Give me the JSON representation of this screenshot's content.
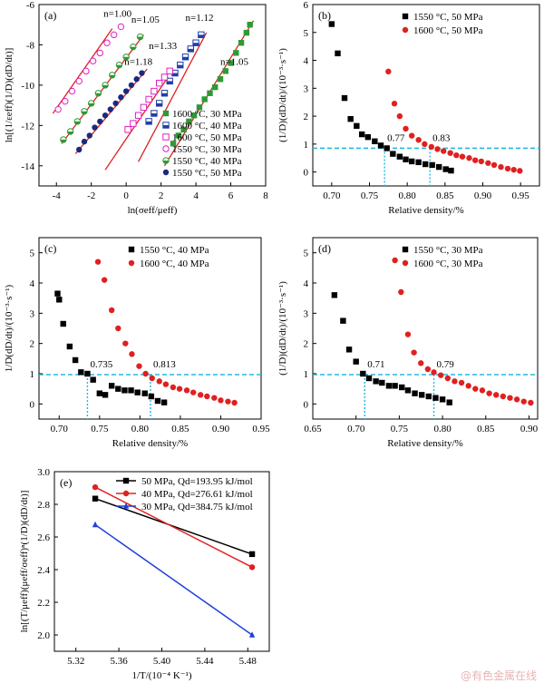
{
  "watermark": "@有色金属在线",
  "chart_data": [
    {
      "panel": "(a)",
      "type": "scatter",
      "xlabel": "ln(σeff/μeff)",
      "ylabel": "ln[(1/ɛeff)(1/D)(dD/dt)]",
      "xlim": [
        -5,
        8
      ],
      "ylim": [
        -15,
        -6
      ],
      "xticks": [
        -4,
        -2,
        0,
        2,
        4,
        6,
        8
      ],
      "yticks": [
        -14,
        -12,
        -10,
        -8,
        -6
      ],
      "legend_position": "bottom-right",
      "annotations": [
        {
          "text": "n=1.00",
          "x": -1.3,
          "y": -6.6
        },
        {
          "text": "n=1.05",
          "x": 0.3,
          "y": -6.9
        },
        {
          "text": "n=1.12",
          "x": 3.4,
          "y": -6.8
        },
        {
          "text": "n=1.33",
          "x": 1.3,
          "y": -8.2
        },
        {
          "text": "n=1.18",
          "x": -0.1,
          "y": -9.0
        },
        {
          "text": "n=1.05",
          "x": 5.4,
          "y": -9.0
        }
      ],
      "series": [
        {
          "name": "1600 °C, 30 MPa",
          "marker": "square",
          "color": "#2e9a34",
          "fill": true,
          "x": [
            2.7,
            3.0,
            3.3,
            3.6,
            3.9,
            4.2,
            4.5,
            4.8,
            5.1,
            5.4,
            5.7,
            6.0,
            6.3,
            6.6,
            6.9,
            7.1
          ],
          "y": [
            -12.9,
            -12.5,
            -12.2,
            -11.8,
            -11.5,
            -11.1,
            -10.7,
            -10.4,
            -10.1,
            -9.7,
            -9.3,
            -8.9,
            -8.4,
            -7.9,
            -7.4,
            -7.0
          ]
        },
        {
          "name": "1600 °C, 40 MPa",
          "marker": "square-half",
          "color": "#1f3fa8",
          "x": [
            1.3,
            1.6,
            1.9,
            2.2,
            2.5,
            2.8,
            3.1,
            3.4,
            3.7,
            4.0,
            4.3
          ],
          "y": [
            -11.8,
            -11.4,
            -10.9,
            -10.4,
            -9.8,
            -9.4,
            -9.0,
            -8.6,
            -8.2,
            -7.9,
            -7.5
          ]
        },
        {
          "name": "1600 °C, 50 MPa",
          "marker": "square-open",
          "color": "#e020c0",
          "x": [
            0.1,
            0.4,
            0.7,
            1.0,
            1.3,
            1.6,
            1.9,
            2.2,
            2.5
          ],
          "y": [
            -12.2,
            -11.9,
            -11.5,
            -11.1,
            -10.7,
            -10.3,
            -9.9,
            -9.6,
            -9.3
          ]
        },
        {
          "name": "1550 °C, 30 MPa",
          "marker": "circle-open",
          "color": "#e020c0",
          "x": [
            -3.9,
            -3.5,
            -3.1,
            -2.7,
            -2.3,
            -1.9,
            -1.5,
            -1.1,
            -0.7,
            -0.3
          ],
          "y": [
            -11.2,
            -10.8,
            -10.3,
            -9.8,
            -9.3,
            -8.8,
            -8.4,
            -7.9,
            -7.5,
            -7.1
          ]
        },
        {
          "name": "1550 °C, 40 MPa",
          "marker": "circle-half",
          "color": "#2e9a34",
          "x": [
            -3.6,
            -3.2,
            -2.8,
            -2.4,
            -2.0,
            -1.6,
            -1.2,
            -0.8,
            -0.4,
            0.0,
            0.4,
            0.8
          ],
          "y": [
            -12.7,
            -12.3,
            -11.8,
            -11.3,
            -10.9,
            -10.4,
            -10.0,
            -9.5,
            -9.0,
            -8.6,
            -8.1,
            -7.6
          ]
        },
        {
          "name": "1550 °C, 50 MPa",
          "marker": "circle",
          "color": "#1a2a80",
          "fill": true,
          "x": [
            -2.7,
            -2.4,
            -2.1,
            -1.8,
            -1.5,
            -1.2,
            -0.9,
            -0.6,
            -0.3,
            0.0,
            0.3,
            0.6,
            0.9
          ],
          "y": [
            -13.2,
            -12.8,
            -12.5,
            -12.1,
            -11.8,
            -11.5,
            -11.2,
            -10.9,
            -10.6,
            -10.3,
            -10.0,
            -9.7,
            -9.4
          ]
        }
      ],
      "fit_lines": [
        {
          "x": [
            -4.2,
            -0.8
          ],
          "y": [
            -11.4,
            -7.2
          ]
        },
        {
          "x": [
            -3.7,
            1.0
          ],
          "y": [
            -12.9,
            -7.5
          ]
        },
        {
          "x": [
            -2.9,
            1.2
          ],
          "y": [
            -13.4,
            -9.2
          ]
        },
        {
          "x": [
            -1.2,
            2.4
          ],
          "y": [
            -14.2,
            -9.6
          ]
        },
        {
          "x": [
            0.7,
            4.6
          ],
          "y": [
            -13.8,
            -7.4
          ]
        },
        {
          "x": [
            2.2,
            7.3
          ],
          "y": [
            -14.0,
            -6.8
          ]
        }
      ],
      "line_color": "#e02020"
    },
    {
      "panel": "(b)",
      "type": "scatter",
      "xlabel": "Relative density/%",
      "ylabel": "(1/D)(dD/dt)/(10⁻³·s⁻¹)",
      "xlim": [
        0.675,
        0.975
      ],
      "ylim": [
        -0.5,
        6
      ],
      "xticks": [
        0.7,
        0.75,
        0.8,
        0.85,
        0.9,
        0.95
      ],
      "yticks": [
        0,
        1,
        2,
        3,
        4,
        5,
        6
      ],
      "legend_position": "top-right",
      "ref_line": 0.85,
      "markers": [
        {
          "x": 0.77,
          "label": "0.77"
        },
        {
          "x": 0.83,
          "label": "0.83"
        }
      ],
      "series": [
        {
          "name": "1550 °C, 50 MPa",
          "marker": "square",
          "color": "#000000",
          "x": [
            0.7,
            0.708,
            0.717,
            0.725,
            0.733,
            0.74,
            0.748,
            0.757,
            0.765,
            0.773,
            0.781,
            0.79,
            0.798,
            0.806,
            0.815,
            0.824,
            0.833,
            0.842,
            0.851,
            0.858
          ],
          "y": [
            5.3,
            4.25,
            2.65,
            1.9,
            1.65,
            1.35,
            1.25,
            1.1,
            0.95,
            0.85,
            0.65,
            0.55,
            0.45,
            0.38,
            0.35,
            0.28,
            0.25,
            0.18,
            0.1,
            0.05
          ]
        },
        {
          "name": "1600 °C, 50 MPa",
          "marker": "circle",
          "color": "#e02020",
          "x": [
            0.775,
            0.783,
            0.79,
            0.798,
            0.806,
            0.815,
            0.823,
            0.832,
            0.84,
            0.848,
            0.857,
            0.865,
            0.873,
            0.882,
            0.89,
            0.898,
            0.907,
            0.915,
            0.924,
            0.933,
            0.941,
            0.949
          ],
          "y": [
            3.6,
            2.45,
            2.0,
            1.55,
            1.3,
            1.15,
            1.0,
            0.9,
            0.82,
            0.75,
            0.68,
            0.6,
            0.55,
            0.5,
            0.42,
            0.38,
            0.32,
            0.25,
            0.18,
            0.12,
            0.08,
            0.04
          ]
        }
      ]
    },
    {
      "panel": "(c)",
      "type": "scatter",
      "xlabel": "Relative density/%",
      "ylabel": "1/D(dD/dt)/(10⁻³·s⁻¹)",
      "xlim": [
        0.675,
        0.95
      ],
      "ylim": [
        -0.5,
        5.5
      ],
      "xticks": [
        0.7,
        0.75,
        0.8,
        0.85,
        0.9,
        0.95
      ],
      "yticks": [
        0,
        1,
        2,
        3,
        4,
        5
      ],
      "legend_position": "top-right",
      "ref_line": 0.97,
      "markers": [
        {
          "x": 0.735,
          "label": "0.735"
        },
        {
          "x": 0.813,
          "label": "0.813"
        }
      ],
      "series": [
        {
          "name": "1550 °C, 40 MPa",
          "marker": "square",
          "color": "#000000",
          "x": [
            0.698,
            0.7,
            0.705,
            0.713,
            0.72,
            0.727,
            0.735,
            0.742,
            0.75,
            0.757,
            0.765,
            0.773,
            0.781,
            0.789,
            0.797,
            0.806,
            0.814,
            0.822,
            0.83
          ],
          "y": [
            3.65,
            3.45,
            2.65,
            1.9,
            1.45,
            1.05,
            1.0,
            0.8,
            0.35,
            0.3,
            0.6,
            0.5,
            0.45,
            0.45,
            0.38,
            0.35,
            0.25,
            0.1,
            0.05
          ]
        },
        {
          "name": "1600 °C, 40 MPa",
          "marker": "circle",
          "color": "#e02020",
          "x": [
            0.748,
            0.756,
            0.765,
            0.773,
            0.782,
            0.79,
            0.799,
            0.807,
            0.815,
            0.824,
            0.832,
            0.841,
            0.849,
            0.858,
            0.866,
            0.875,
            0.883,
            0.892,
            0.9,
            0.909,
            0.917
          ],
          "y": [
            4.7,
            4.1,
            3.1,
            2.5,
            2.0,
            1.65,
            1.25,
            1.0,
            0.85,
            0.75,
            0.65,
            0.55,
            0.5,
            0.45,
            0.38,
            0.3,
            0.25,
            0.2,
            0.12,
            0.08,
            0.04
          ]
        }
      ]
    },
    {
      "panel": "(d)",
      "type": "scatter",
      "xlabel": "Relative density/%",
      "ylabel": "(1/D)(dD/dt)/(10⁻³·s⁻¹)",
      "xlim": [
        0.65,
        0.91
      ],
      "ylim": [
        -0.5,
        5.5
      ],
      "xticks": [
        0.65,
        0.7,
        0.75,
        0.8,
        0.85,
        0.9
      ],
      "yticks": [
        0,
        1,
        2,
        3,
        4,
        5
      ],
      "legend_position": "top-right",
      "ref_line": 0.97,
      "markers": [
        {
          "x": 0.71,
          "label": "0.71"
        },
        {
          "x": 0.79,
          "label": "0.79"
        }
      ],
      "series": [
        {
          "name": "1550 °C, 30 MPa",
          "marker": "square",
          "color": "#000000",
          "x": [
            0.675,
            0.685,
            0.692,
            0.7,
            0.708,
            0.715,
            0.723,
            0.73,
            0.738,
            0.745,
            0.753,
            0.76,
            0.768,
            0.776,
            0.784,
            0.792,
            0.8,
            0.808
          ],
          "y": [
            3.6,
            2.75,
            1.8,
            1.4,
            1.0,
            0.85,
            0.75,
            0.7,
            0.6,
            0.6,
            0.55,
            0.45,
            0.35,
            0.3,
            0.25,
            0.2,
            0.15,
            0.05
          ]
        },
        {
          "name": "1600 °C, 30 MPa",
          "marker": "circle",
          "color": "#e02020",
          "x": [
            0.745,
            0.752,
            0.76,
            0.767,
            0.775,
            0.783,
            0.79,
            0.798,
            0.806,
            0.814,
            0.822,
            0.83,
            0.838,
            0.846,
            0.854,
            0.862,
            0.87,
            0.878,
            0.886,
            0.894,
            0.902
          ],
          "y": [
            4.75,
            3.7,
            2.3,
            1.7,
            1.35,
            1.15,
            1.05,
            0.95,
            0.85,
            0.75,
            0.7,
            0.6,
            0.5,
            0.45,
            0.35,
            0.3,
            0.25,
            0.2,
            0.15,
            0.08,
            0.04
          ]
        }
      ]
    },
    {
      "panel": "(e)",
      "type": "line",
      "xlabel": "1/T/(10⁻⁴ K⁻¹)",
      "ylabel": "ln[(T/μeff)(μeff/σeff)ⁿ(1/D)(dD/dt)]",
      "xlim": [
        5.3,
        5.5
      ],
      "ylim": [
        1.9,
        3.0
      ],
      "xticks": [
        5.32,
        5.36,
        5.4,
        5.44,
        5.48
      ],
      "yticks": [
        2.0,
        2.2,
        2.4,
        2.6,
        2.8,
        3.0
      ],
      "legend_position": "top-right",
      "series": [
        {
          "name": "50 MPa",
          "q_label": "Qd=193.95 kJ/mol",
          "marker": "square",
          "color": "#000000",
          "x": [
            5.338,
            5.484
          ],
          "y": [
            2.835,
            2.495
          ]
        },
        {
          "name": "40 MPa",
          "q_label": "Qd=276.61 kJ/mol",
          "marker": "circle",
          "color": "#e02020",
          "x": [
            5.338,
            5.484
          ],
          "y": [
            2.905,
            2.415
          ]
        },
        {
          "name": "30 MPa",
          "q_label": "Qd=384.75 kJ/mol",
          "marker": "triangle",
          "color": "#1f3fd8",
          "x": [
            5.338,
            5.484
          ],
          "y": [
            2.675,
            2.0
          ]
        }
      ]
    }
  ]
}
